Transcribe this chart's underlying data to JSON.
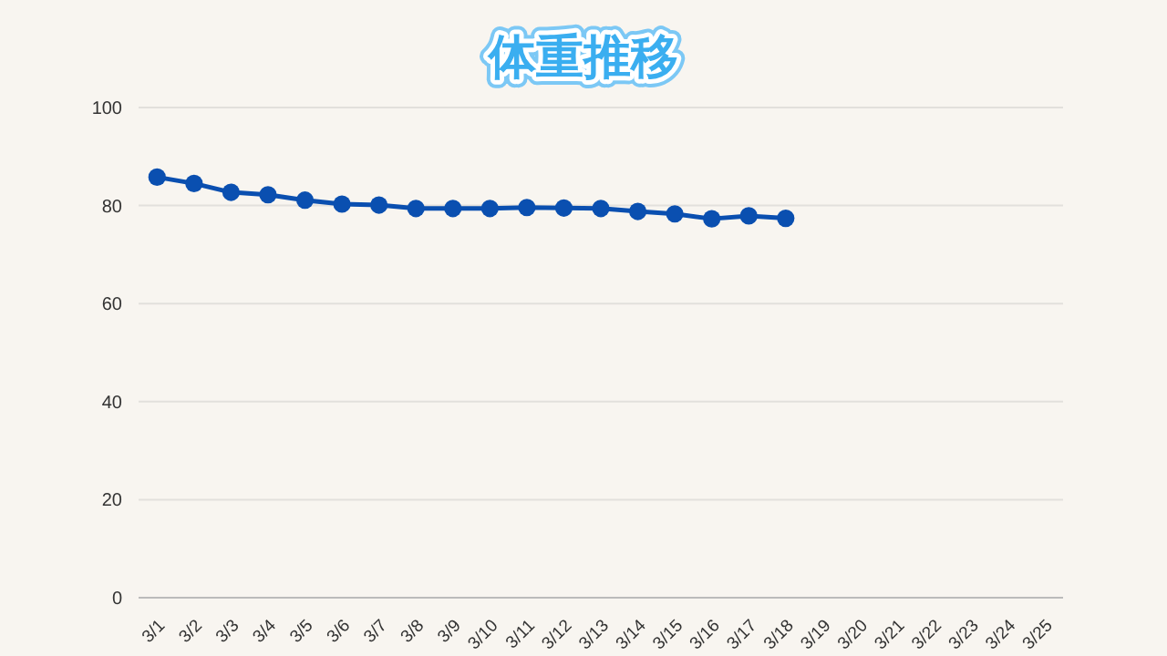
{
  "chart_data": {
    "type": "line",
    "title": "体重推移",
    "categories": [
      "3/1",
      "3/2",
      "3/3",
      "3/4",
      "3/5",
      "3/6",
      "3/7",
      "3/8",
      "3/9",
      "3/10",
      "3/11",
      "3/12",
      "3/13",
      "3/14",
      "3/15",
      "3/16",
      "3/17",
      "3/18",
      "3/19",
      "3/20",
      "3/21",
      "3/22",
      "3/23",
      "3/24",
      "3/25"
    ],
    "series": [
      {
        "color": "#0a4fb0",
        "values": [
          85.8,
          84.5,
          82.7,
          82.2,
          81.1,
          80.3,
          80.1,
          79.4,
          79.4,
          79.4,
          79.6,
          79.5,
          79.4,
          78.8,
          78.3,
          77.3,
          77.9,
          77.4,
          null,
          null,
          null,
          null,
          null,
          null,
          null
        ]
      }
    ],
    "ylim": [
      0,
      100
    ],
    "yticks": [
      0,
      20,
      40,
      60,
      80,
      100
    ],
    "grid": "y",
    "marker": "circle",
    "line_style": "solid"
  }
}
